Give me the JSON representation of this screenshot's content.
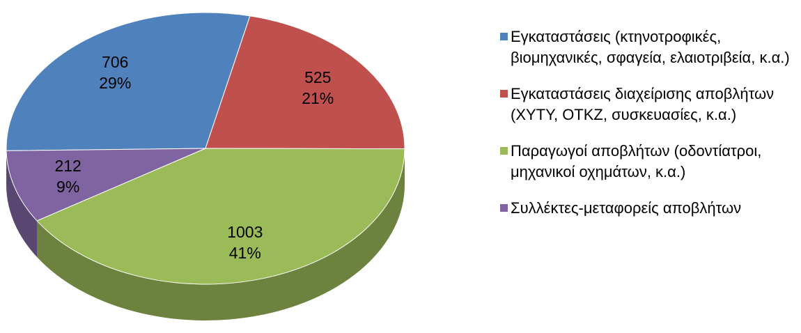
{
  "chart_data": {
    "type": "pie",
    "categories": [
      "Εγκαταστάσεις (κτηνοτροφικές, βιομηχανικές, σφαγεία, ελαιοτριβεία, κ.α.)",
      "Εγκαταστάσεις διαχείρισης αποβλήτων (ΧΥΤΥ, ΟΤΚΖ, συσκευασίες, κ.α.)",
      "Παραγωγοί αποβλήτων (οδοντίατροι, μηχανικοί οχημάτων, κ.α.)",
      "Συλλέκτες-μεταφορείς αποβλήτων"
    ],
    "values": [
      706,
      525,
      1003,
      212
    ],
    "percent_labels": [
      "29%",
      "21%",
      "41%",
      "9%"
    ],
    "colors": [
      "#4f81bd",
      "#c0504d",
      "#9bbb59",
      "#8064a2"
    ],
    "legend": "right"
  }
}
